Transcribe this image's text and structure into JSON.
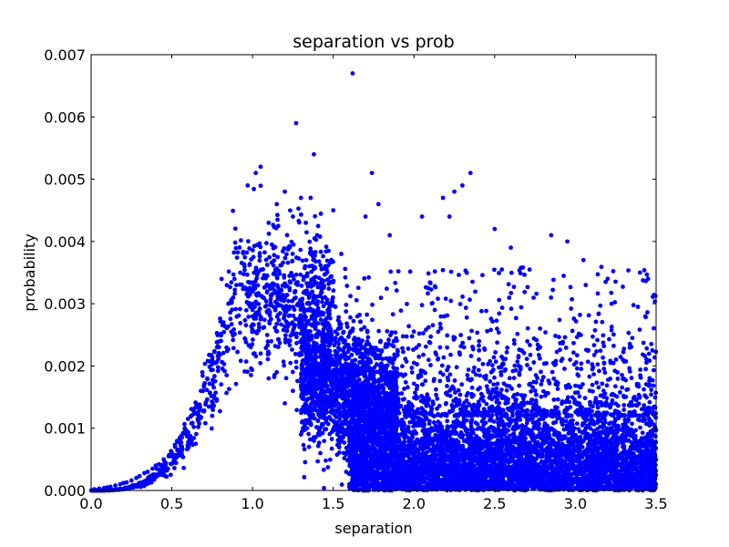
{
  "chart_data": {
    "type": "scatter",
    "title": "separation vs prob",
    "xlabel": "separation",
    "ylabel": "probability",
    "xlim": [
      0.0,
      3.5
    ],
    "ylim": [
      0.0,
      0.007
    ],
    "x_ticks": [
      "0.0",
      "0.5",
      "1.0",
      "1.5",
      "2.0",
      "2.5",
      "3.0",
      "3.5"
    ],
    "y_ticks": [
      "0.000",
      "0.001",
      "0.002",
      "0.003",
      "0.004",
      "0.005",
      "0.006",
      "0.007"
    ],
    "grid": false,
    "legend": "none",
    "marker_color": "#0000ff",
    "series": [
      {
        "points": [
          [
            0.02,
            2e-05
          ],
          [
            0.05,
            3e-05
          ],
          [
            0.08,
            4e-05
          ],
          [
            0.1,
            5e-05
          ],
          [
            0.12,
            6e-05
          ],
          [
            0.15,
            8e-05
          ],
          [
            0.18,
            0.0001
          ],
          [
            0.2,
            0.00012
          ],
          [
            0.22,
            0.00013
          ],
          [
            0.25,
            0.00016
          ],
          [
            0.28,
            0.0002
          ],
          [
            0.3,
            0.00023
          ],
          [
            0.33,
            0.00028
          ],
          [
            0.35,
            0.0003
          ],
          [
            0.38,
            0.00035
          ],
          [
            0.4,
            0.0004
          ],
          [
            0.42,
            0.00042
          ],
          [
            0.45,
            0.0005
          ],
          [
            0.48,
            0.00055
          ],
          [
            0.5,
            0.0006
          ],
          [
            0.52,
            0.0007
          ],
          [
            0.55,
            0.00085
          ],
          [
            0.58,
            0.001
          ],
          [
            0.6,
            0.00115
          ],
          [
            0.62,
            0.0012
          ],
          [
            0.65,
            0.0014
          ],
          [
            0.68,
            0.0016
          ],
          [
            0.7,
            0.0017
          ],
          [
            0.72,
            0.0018
          ],
          [
            0.75,
            0.0021
          ],
          [
            0.78,
            0.0023
          ],
          [
            0.8,
            0.0025
          ],
          [
            0.82,
            0.0027
          ],
          [
            0.85,
            0.003
          ],
          [
            0.88,
            0.0031
          ],
          [
            0.9,
            0.0033
          ],
          [
            0.95,
            0.0036
          ],
          [
            0.97,
            0.0049
          ],
          [
            1.02,
            0.0051
          ],
          [
            1.05,
            0.0052
          ],
          [
            1.0,
            0.0029
          ],
          [
            1.05,
            0.0022
          ],
          [
            1.1,
            0.0043
          ],
          [
            1.15,
            0.0046
          ],
          [
            1.2,
            0.0048
          ],
          [
            1.22,
            0.0039
          ],
          [
            1.25,
            0.0044
          ],
          [
            1.27,
            0.0059
          ],
          [
            1.3,
            0.0047
          ],
          [
            1.33,
            0.0043
          ],
          [
            1.36,
            0.0047
          ],
          [
            1.38,
            0.0054
          ],
          [
            1.4,
            0.0041
          ],
          [
            1.45,
            0.0036
          ],
          [
            1.5,
            0.0045
          ],
          [
            1.55,
            0.0038
          ],
          [
            1.62,
            0.0067
          ],
          [
            1.7,
            0.0044
          ],
          [
            1.74,
            0.0051
          ],
          [
            1.78,
            0.0046
          ],
          [
            1.85,
            0.0041
          ],
          [
            2.05,
            0.0044
          ],
          [
            2.18,
            0.0047
          ],
          [
            2.22,
            0.0044
          ],
          [
            2.25,
            0.0048
          ],
          [
            2.3,
            0.0049
          ],
          [
            2.35,
            0.0051
          ],
          [
            2.5,
            0.0042
          ],
          [
            2.6,
            0.0039
          ],
          [
            2.85,
            0.0041
          ],
          [
            2.95,
            0.004
          ],
          [
            3.05,
            0.0037
          ],
          [
            3.2,
            0.0034
          ],
          [
            3.4,
            0.0035
          ],
          [
            3.45,
            0.0034
          ],
          [
            1.1,
            0.0018
          ],
          [
            1.15,
            0.0019
          ],
          [
            1.3,
            0.0009
          ],
          [
            1.35,
            0.0007
          ],
          [
            1.42,
            0.0006
          ],
          [
            1.58,
            0.0003
          ],
          [
            1.6,
            0.0001
          ],
          [
            1.65,
            0.0002
          ],
          [
            1.2,
            0.0014
          ],
          [
            1.25,
            0.0016
          ]
        ]
      }
    ]
  }
}
